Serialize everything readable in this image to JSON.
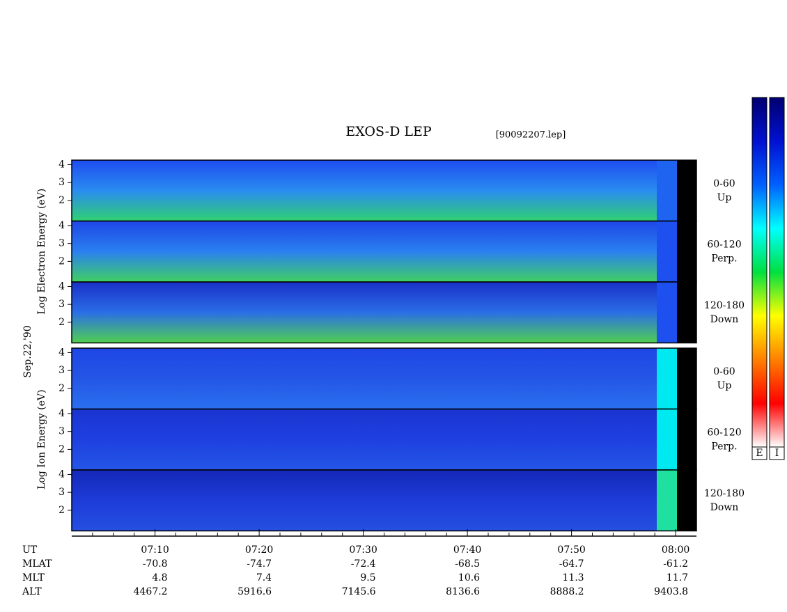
{
  "chart_data": {
    "type": "spectrogram",
    "title": "EXOS-D LEP",
    "file": "[90092207.lep]",
    "date": "Sep.22,'90",
    "xlim": [
      2,
      62
    ],
    "xticks": [
      {
        "value": 10,
        "label": "07:10"
      },
      {
        "value": 20,
        "label": "07:20"
      },
      {
        "value": 30,
        "label": "07:30"
      },
      {
        "value": 40,
        "label": "07:40"
      },
      {
        "value": 50,
        "label": "07:50"
      },
      {
        "value": 60,
        "label": "08:00"
      }
    ],
    "minor_xticks": [
      4,
      6,
      8,
      12,
      14,
      16,
      18,
      22,
      24,
      26,
      28,
      32,
      34,
      36,
      38,
      42,
      44,
      46,
      48,
      52,
      54,
      56,
      58
    ],
    "groups": [
      {
        "ylabel": "Log Electron Energy (eV)",
        "panels": [
          {
            "label": "0-60",
            "sublabel": "Up",
            "ylim": [
              0.85,
              4.25
            ],
            "yticks": [
              2,
              3,
              4
            ],
            "colors": [
              "#1e4cf0",
              "#2a8cf0",
              "#30d070"
            ],
            "cal_color": "#1e64f0"
          },
          {
            "label": "60-120",
            "sublabel": "Perp.",
            "ylim": [
              0.85,
              4.25
            ],
            "yticks": [
              2,
              3,
              4
            ],
            "colors": [
              "#1e46e6",
              "#2a80f0",
              "#40d060"
            ],
            "cal_color": "#1e50f0"
          },
          {
            "label": "120-180",
            "sublabel": "Down",
            "ylim": [
              0.85,
              4.25
            ],
            "yticks": [
              2,
              3,
              4
            ],
            "colors": [
              "#1a30c8",
              "#2a6ee6",
              "#50d050"
            ],
            "cal_color": "#1e50f0"
          }
        ]
      },
      {
        "ylabel": "Log Ion Energy (eV)",
        "panels": [
          {
            "label": "0-60",
            "sublabel": "Up",
            "ylim": [
              0.85,
              4.25
            ],
            "yticks": [
              2,
              3,
              4
            ],
            "colors": [
              "#1e46e6",
              "#2456e6",
              "#2a70f0"
            ],
            "cal_color": "#00e8f0"
          },
          {
            "label": "60-120",
            "sublabel": "Perp.",
            "ylim": [
              0.85,
              4.25
            ],
            "yticks": [
              2,
              3,
              4
            ],
            "colors": [
              "#1a34d0",
              "#1e40e0",
              "#2456e6"
            ],
            "cal_color": "#00e8f0"
          },
          {
            "label": "120-180",
            "sublabel": "Down",
            "ylim": [
              0.85,
              4.25
            ],
            "yticks": [
              2,
              3,
              4
            ],
            "colors": [
              "#1428b8",
              "#1e3cd8",
              "#2450e0"
            ],
            "cal_color": "#20e0a0"
          }
        ]
      }
    ],
    "orbit": {
      "time_label": "UT",
      "rows": [
        {
          "name": "MLAT",
          "values": [
            -70.8,
            -74.7,
            -72.4,
            -68.5,
            -64.7,
            -61.2
          ]
        },
        {
          "name": "MLT",
          "values": [
            4.8,
            7.4,
            9.5,
            10.6,
            11.3,
            11.7
          ]
        },
        {
          "name": "ALT",
          "values": [
            4467.2,
            5916.6,
            7145.6,
            8136.6,
            8888.2,
            9403.8
          ]
        }
      ]
    },
    "colorbars": [
      {
        "label": "E"
      },
      {
        "label": "I"
      }
    ],
    "colorscale": [
      "#000070",
      "#0010d0",
      "#0060ff",
      "#00ffff",
      "#00e040",
      "#ffff00",
      "#ff8000",
      "#ff0000",
      "#ffffff"
    ]
  }
}
